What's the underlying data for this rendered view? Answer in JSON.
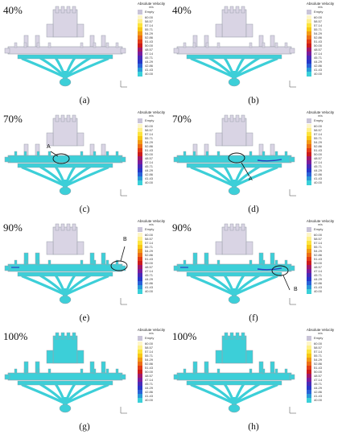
{
  "legend": {
    "title": "Absolute Velocity",
    "unit": "m/s",
    "empty_label": "Empty",
    "colors": {
      "empty": "#c9c4d8"
    },
    "levels": [
      {
        "label": "60.00",
        "color": "#fef6c8"
      },
      {
        "label": "58.57",
        "color": "#fff08a"
      },
      {
        "label": "57.14",
        "color": "#fde43c"
      },
      {
        "label": "55.71",
        "color": "#f8c815"
      },
      {
        "label": "54.29",
        "color": "#f29a14"
      },
      {
        "label": "52.86",
        "color": "#ec6e16"
      },
      {
        "label": "51.43",
        "color": "#e23c16"
      },
      {
        "label": "50.00",
        "color": "#cc1c1c"
      },
      {
        "label": "48.57",
        "color": "#a0186a"
      },
      {
        "label": "47.14",
        "color": "#7a1c9c"
      },
      {
        "label": "45.71",
        "color": "#4a2ab8"
      },
      {
        "label": "44.29",
        "color": "#2838c8"
      },
      {
        "label": "42.86",
        "color": "#2a62d8"
      },
      {
        "label": "41.43",
        "color": "#2a98d8"
      },
      {
        "label": "40.00",
        "color": "#3ad0d8"
      }
    ]
  },
  "fluid_color": "#3ccfd8",
  "empty_color": "#d9d4e4",
  "panels": [
    {
      "fill": "40%",
      "caption": "(a)",
      "fill_fraction": 0.4
    },
    {
      "fill": "40%",
      "caption": "(b)",
      "fill_fraction": 0.4
    },
    {
      "fill": "70%",
      "caption": "(c)",
      "fill_fraction": 0.7,
      "marker": "A"
    },
    {
      "fill": "70%",
      "caption": "(d)",
      "fill_fraction": 0.7,
      "marker": "A"
    },
    {
      "fill": "90%",
      "caption": "(e)",
      "fill_fraction": 0.9,
      "marker": "B"
    },
    {
      "fill": "90%",
      "caption": "(f)",
      "fill_fraction": 0.9,
      "marker": "B"
    },
    {
      "fill": "100%",
      "caption": "(g)",
      "fill_fraction": 1.0
    },
    {
      "fill": "100%",
      "caption": "(h)",
      "fill_fraction": 1.0
    }
  ]
}
